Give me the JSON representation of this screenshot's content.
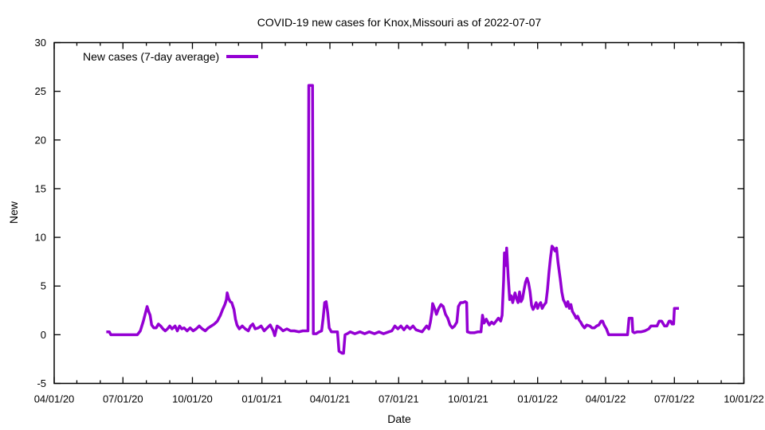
{
  "chart_data": {
    "type": "line",
    "title": "COVID-19 new cases for Knox,Missouri as of 2022-07-07",
    "xlabel": "Date",
    "ylabel": "New",
    "grid": false,
    "legend_position": "top-left-inside",
    "x_range": [
      "2020-04-01",
      "2022-10-01"
    ],
    "y_range": [
      -5,
      30
    ],
    "x_ticks": [
      {
        "label": "04/01/20",
        "date": "2020-04-01"
      },
      {
        "label": "07/01/20",
        "date": "2020-07-01"
      },
      {
        "label": "10/01/20",
        "date": "2020-10-01"
      },
      {
        "label": "01/01/21",
        "date": "2021-01-01"
      },
      {
        "label": "04/01/21",
        "date": "2021-04-01"
      },
      {
        "label": "07/01/21",
        "date": "2021-07-01"
      },
      {
        "label": "10/01/21",
        "date": "2021-10-01"
      },
      {
        "label": "01/01/22",
        "date": "2022-01-01"
      },
      {
        "label": "04/01/22",
        "date": "2022-04-01"
      },
      {
        "label": "07/01/22",
        "date": "2022-07-01"
      },
      {
        "label": "10/01/22",
        "date": "2022-10-01"
      }
    ],
    "x_minor_tick_interval": "1 month",
    "y_ticks": [
      -5,
      0,
      5,
      10,
      15,
      20,
      25,
      30
    ],
    "series": [
      {
        "name": "New cases (7-day average)",
        "color": "#9400D3",
        "points": [
          [
            "2020-06-09",
            0.3
          ],
          [
            "2020-06-13",
            0.3
          ],
          [
            "2020-06-15",
            0.0
          ],
          [
            "2020-07-20",
            0.0
          ],
          [
            "2020-07-24",
            0.4
          ],
          [
            "2020-07-28",
            1.4
          ],
          [
            "2020-08-01",
            2.6
          ],
          [
            "2020-08-02",
            2.9
          ],
          [
            "2020-08-04",
            2.4
          ],
          [
            "2020-08-06",
            2.0
          ],
          [
            "2020-08-08",
            1.0
          ],
          [
            "2020-08-11",
            0.7
          ],
          [
            "2020-08-14",
            0.7
          ],
          [
            "2020-08-17",
            1.1
          ],
          [
            "2020-08-20",
            0.9
          ],
          [
            "2020-08-23",
            0.6
          ],
          [
            "2020-08-26",
            0.4
          ],
          [
            "2020-08-29",
            0.6
          ],
          [
            "2020-09-01",
            0.9
          ],
          [
            "2020-09-04",
            0.6
          ],
          [
            "2020-09-08",
            0.9
          ],
          [
            "2020-09-11",
            0.4
          ],
          [
            "2020-09-14",
            0.9
          ],
          [
            "2020-09-17",
            0.6
          ],
          [
            "2020-09-20",
            0.7
          ],
          [
            "2020-09-24",
            0.4
          ],
          [
            "2020-09-28",
            0.7
          ],
          [
            "2020-10-02",
            0.4
          ],
          [
            "2020-10-06",
            0.6
          ],
          [
            "2020-10-10",
            0.9
          ],
          [
            "2020-10-14",
            0.6
          ],
          [
            "2020-10-18",
            0.4
          ],
          [
            "2020-10-22",
            0.7
          ],
          [
            "2020-10-26",
            0.9
          ],
          [
            "2020-10-30",
            1.1
          ],
          [
            "2020-11-03",
            1.4
          ],
          [
            "2020-11-07",
            2.0
          ],
          [
            "2020-11-10",
            2.6
          ],
          [
            "2020-11-13",
            3.1
          ],
          [
            "2020-11-15",
            3.6
          ],
          [
            "2020-11-16",
            4.3
          ],
          [
            "2020-11-18",
            3.7
          ],
          [
            "2020-11-20",
            3.4
          ],
          [
            "2020-11-22",
            3.3
          ],
          [
            "2020-11-25",
            2.6
          ],
          [
            "2020-11-27",
            1.6
          ],
          [
            "2020-11-29",
            1.0
          ],
          [
            "2020-12-02",
            0.6
          ],
          [
            "2020-12-06",
            0.9
          ],
          [
            "2020-12-10",
            0.6
          ],
          [
            "2020-12-14",
            0.4
          ],
          [
            "2020-12-17",
            0.9
          ],
          [
            "2020-12-20",
            1.1
          ],
          [
            "2020-12-23",
            0.6
          ],
          [
            "2020-12-27",
            0.7
          ],
          [
            "2020-12-31",
            0.9
          ],
          [
            "2021-01-04",
            0.4
          ],
          [
            "2021-01-08",
            0.7
          ],
          [
            "2021-01-12",
            1.0
          ],
          [
            "2021-01-16",
            0.4
          ],
          [
            "2021-01-18",
            -0.1
          ],
          [
            "2021-01-21",
            0.9
          ],
          [
            "2021-01-25",
            0.7
          ],
          [
            "2021-01-29",
            0.4
          ],
          [
            "2021-02-03",
            0.6
          ],
          [
            "2021-02-08",
            0.4
          ],
          [
            "2021-02-13",
            0.4
          ],
          [
            "2021-02-19",
            0.3
          ],
          [
            "2021-02-24",
            0.4
          ],
          [
            "2021-03-01",
            0.4
          ],
          [
            "2021-03-03",
            0.4
          ],
          [
            "2021-03-04",
            25.6
          ],
          [
            "2021-03-09",
            25.6
          ],
          [
            "2021-03-10",
            0.1
          ],
          [
            "2021-03-14",
            0.1
          ],
          [
            "2021-03-18",
            0.3
          ],
          [
            "2021-03-21",
            0.4
          ],
          [
            "2021-03-23",
            1.7
          ],
          [
            "2021-03-25",
            3.3
          ],
          [
            "2021-03-27",
            3.4
          ],
          [
            "2021-03-29",
            2.3
          ],
          [
            "2021-03-31",
            0.7
          ],
          [
            "2021-04-03",
            0.3
          ],
          [
            "2021-04-07",
            0.3
          ],
          [
            "2021-04-11",
            0.3
          ],
          [
            "2021-04-13",
            -1.7
          ],
          [
            "2021-04-17",
            -1.9
          ],
          [
            "2021-04-19",
            -1.9
          ],
          [
            "2021-04-21",
            0.0
          ],
          [
            "2021-04-24",
            0.1
          ],
          [
            "2021-04-28",
            0.3
          ],
          [
            "2021-05-04",
            0.1
          ],
          [
            "2021-05-11",
            0.3
          ],
          [
            "2021-05-17",
            0.1
          ],
          [
            "2021-05-23",
            0.3
          ],
          [
            "2021-05-30",
            0.1
          ],
          [
            "2021-06-05",
            0.3
          ],
          [
            "2021-06-11",
            0.1
          ],
          [
            "2021-06-18",
            0.3
          ],
          [
            "2021-06-22",
            0.4
          ],
          [
            "2021-06-26",
            0.9
          ],
          [
            "2021-06-30",
            0.6
          ],
          [
            "2021-07-04",
            0.9
          ],
          [
            "2021-07-08",
            0.5
          ],
          [
            "2021-07-12",
            0.9
          ],
          [
            "2021-07-16",
            0.6
          ],
          [
            "2021-07-20",
            0.9
          ],
          [
            "2021-07-24",
            0.5
          ],
          [
            "2021-07-28",
            0.4
          ],
          [
            "2021-08-01",
            0.3
          ],
          [
            "2021-08-04",
            0.6
          ],
          [
            "2021-08-07",
            0.9
          ],
          [
            "2021-08-10",
            0.6
          ],
          [
            "2021-08-12",
            1.3
          ],
          [
            "2021-08-14",
            2.3
          ],
          [
            "2021-08-15",
            3.2
          ],
          [
            "2021-08-18",
            2.6
          ],
          [
            "2021-08-20",
            2.1
          ],
          [
            "2021-08-23",
            2.7
          ],
          [
            "2021-08-26",
            3.1
          ],
          [
            "2021-08-29",
            2.9
          ],
          [
            "2021-09-01",
            2.1
          ],
          [
            "2021-09-04",
            1.7
          ],
          [
            "2021-09-07",
            1.0
          ],
          [
            "2021-09-10",
            0.7
          ],
          [
            "2021-09-13",
            0.9
          ],
          [
            "2021-09-16",
            1.3
          ],
          [
            "2021-09-18",
            2.9
          ],
          [
            "2021-09-21",
            3.3
          ],
          [
            "2021-09-24",
            3.3
          ],
          [
            "2021-09-27",
            3.4
          ],
          [
            "2021-09-29",
            3.3
          ],
          [
            "2021-09-30",
            0.3
          ],
          [
            "2021-10-04",
            0.2
          ],
          [
            "2021-10-09",
            0.2
          ],
          [
            "2021-10-14",
            0.3
          ],
          [
            "2021-10-18",
            0.3
          ],
          [
            "2021-10-20",
            2.0
          ],
          [
            "2021-10-22",
            1.2
          ],
          [
            "2021-10-25",
            1.6
          ],
          [
            "2021-10-29",
            1.0
          ],
          [
            "2021-11-01",
            1.3
          ],
          [
            "2021-11-04",
            1.1
          ],
          [
            "2021-11-07",
            1.4
          ],
          [
            "2021-11-10",
            1.7
          ],
          [
            "2021-11-13",
            1.4
          ],
          [
            "2021-11-15",
            2.0
          ],
          [
            "2021-11-17",
            5.6
          ],
          [
            "2021-11-18",
            8.4
          ],
          [
            "2021-11-20",
            7.1
          ],
          [
            "2021-11-21",
            8.9
          ],
          [
            "2021-11-23",
            6.0
          ],
          [
            "2021-11-25",
            3.6
          ],
          [
            "2021-11-27",
            4.0
          ],
          [
            "2021-11-29",
            3.3
          ],
          [
            "2021-12-02",
            4.3
          ],
          [
            "2021-12-04",
            3.7
          ],
          [
            "2021-12-06",
            3.3
          ],
          [
            "2021-12-08",
            4.4
          ],
          [
            "2021-12-10",
            3.4
          ],
          [
            "2021-12-12",
            3.7
          ],
          [
            "2021-12-14",
            4.6
          ],
          [
            "2021-12-16",
            5.4
          ],
          [
            "2021-12-18",
            5.8
          ],
          [
            "2021-12-20",
            5.3
          ],
          [
            "2021-12-22",
            4.4
          ],
          [
            "2021-12-24",
            3.0
          ],
          [
            "2021-12-26",
            2.6
          ],
          [
            "2021-12-28",
            2.9
          ],
          [
            "2021-12-30",
            3.3
          ],
          [
            "2022-01-01",
            2.7
          ],
          [
            "2022-01-03",
            3.1
          ],
          [
            "2022-01-05",
            3.3
          ],
          [
            "2022-01-07",
            2.7
          ],
          [
            "2022-01-09",
            3.0
          ],
          [
            "2022-01-12",
            3.3
          ],
          [
            "2022-01-14",
            4.6
          ],
          [
            "2022-01-16",
            6.4
          ],
          [
            "2022-01-18",
            7.9
          ],
          [
            "2022-01-20",
            9.1
          ],
          [
            "2022-01-22",
            8.9
          ],
          [
            "2022-01-24",
            8.6
          ],
          [
            "2022-01-26",
            8.9
          ],
          [
            "2022-01-28",
            7.4
          ],
          [
            "2022-01-31",
            5.7
          ],
          [
            "2022-02-02",
            4.4
          ],
          [
            "2022-02-04",
            3.6
          ],
          [
            "2022-02-06",
            3.3
          ],
          [
            "2022-02-08",
            2.9
          ],
          [
            "2022-02-10",
            3.4
          ],
          [
            "2022-02-12",
            2.7
          ],
          [
            "2022-02-14",
            3.1
          ],
          [
            "2022-02-16",
            2.4
          ],
          [
            "2022-02-19",
            2.0
          ],
          [
            "2022-02-21",
            1.7
          ],
          [
            "2022-02-23",
            1.9
          ],
          [
            "2022-02-25",
            1.5
          ],
          [
            "2022-02-27",
            1.3
          ],
          [
            "2022-03-01",
            1.0
          ],
          [
            "2022-03-04",
            0.7
          ],
          [
            "2022-03-07",
            1.0
          ],
          [
            "2022-03-11",
            0.9
          ],
          [
            "2022-03-14",
            0.7
          ],
          [
            "2022-03-17",
            0.7
          ],
          [
            "2022-03-20",
            0.9
          ],
          [
            "2022-03-23",
            1.0
          ],
          [
            "2022-03-26",
            1.4
          ],
          [
            "2022-03-28",
            1.4
          ],
          [
            "2022-03-30",
            1.0
          ],
          [
            "2022-04-02",
            0.6
          ],
          [
            "2022-04-05",
            0.0
          ],
          [
            "2022-04-12",
            0.0
          ],
          [
            "2022-04-20",
            0.0
          ],
          [
            "2022-04-30",
            0.0
          ],
          [
            "2022-05-02",
            1.7
          ],
          [
            "2022-05-06",
            1.7
          ],
          [
            "2022-05-07",
            0.3
          ],
          [
            "2022-05-09",
            0.2
          ],
          [
            "2022-05-13",
            0.3
          ],
          [
            "2022-05-18",
            0.3
          ],
          [
            "2022-05-23",
            0.4
          ],
          [
            "2022-05-28",
            0.6
          ],
          [
            "2022-05-31",
            0.9
          ],
          [
            "2022-06-04",
            0.9
          ],
          [
            "2022-06-08",
            0.9
          ],
          [
            "2022-06-11",
            1.4
          ],
          [
            "2022-06-14",
            1.4
          ],
          [
            "2022-06-18",
            0.9
          ],
          [
            "2022-06-21",
            0.9
          ],
          [
            "2022-06-24",
            1.4
          ],
          [
            "2022-06-26",
            1.4
          ],
          [
            "2022-06-28",
            1.1
          ],
          [
            "2022-06-30",
            1.1
          ],
          [
            "2022-07-01",
            2.7
          ],
          [
            "2022-07-07",
            2.7
          ]
        ]
      }
    ]
  },
  "colors": {
    "line": "#9400D3",
    "axis": "#000000",
    "text": "#000000",
    "background": "#FFFFFF"
  }
}
